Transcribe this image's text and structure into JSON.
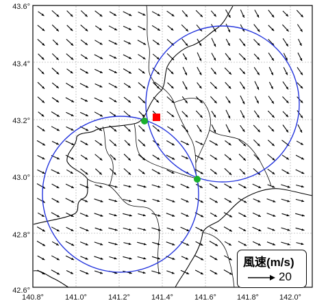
{
  "map": {
    "x_ticks": [
      "140.8°",
      "141.0°",
      "141.2°",
      "141.4°",
      "141.6°",
      "141.8°",
      "142.0°"
    ],
    "y_ticks": [
      "43.6°",
      "43.4°",
      "43.2°",
      "43.0°",
      "42.8°",
      "42.6°"
    ],
    "lon_range": [
      140.8,
      142.1
    ],
    "lat_range": [
      42.6,
      43.6
    ],
    "circles": [
      {
        "name": "ring-upper-right",
        "lon": 141.71,
        "lat": 43.22,
        "radius_deg_lon": 0.385,
        "radius_deg_lat": 0.275
      },
      {
        "name": "ring-lower-left",
        "lon": 141.21,
        "lat": 42.98,
        "radius_deg_lon": 0.385,
        "radius_deg_lat": 0.275
      }
    ],
    "stations": [
      {
        "name": "station-green-1",
        "lon": 141.33,
        "lat": 43.2,
        "color": "#19b02d"
      },
      {
        "name": "station-green-2",
        "lon": 141.58,
        "lat": 42.995,
        "color": "#19b02d"
      },
      {
        "name": "station-red",
        "lon": 141.37,
        "lat": 43.21,
        "color": "#ff0000"
      }
    ],
    "colors": {
      "ring": "#2233dd",
      "coast": "#000000",
      "grid": "#b8b8b8"
    }
  },
  "legend": {
    "title": "風速(m/s)",
    "value": "20"
  }
}
